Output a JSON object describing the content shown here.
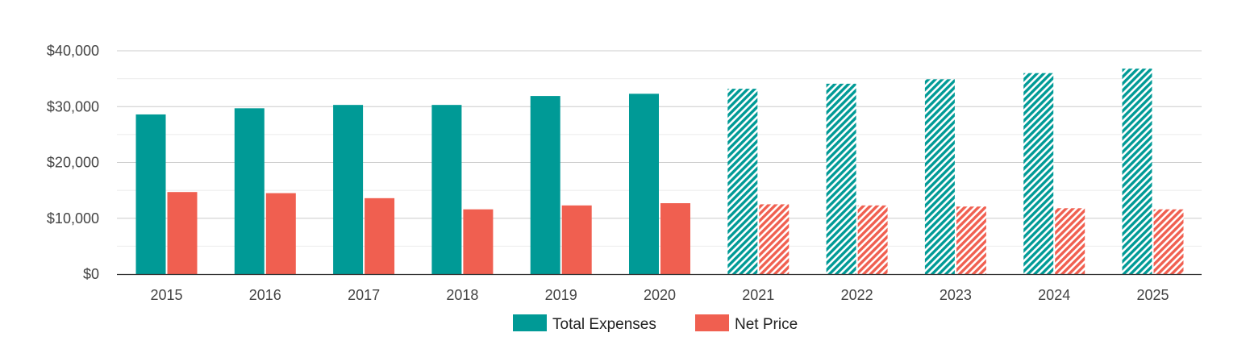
{
  "chart_data": {
    "type": "bar",
    "title": "",
    "xlabel": "",
    "ylabel": "",
    "categories": [
      "2015",
      "2016",
      "2017",
      "2018",
      "2019",
      "2020",
      "2021",
      "2022",
      "2023",
      "2024",
      "2025"
    ],
    "series": [
      {
        "name": "Total Expenses",
        "color": "#009a96",
        "values": [
          28600,
          29700,
          30300,
          30300,
          31900,
          32300,
          33200,
          34100,
          34900,
          36000,
          36800
        ]
      },
      {
        "name": "Net Price",
        "color": "#f05f50",
        "values": [
          14700,
          14500,
          13600,
          11600,
          12300,
          12700,
          12500,
          12300,
          12100,
          11800,
          11600
        ]
      }
    ],
    "hatched_categories": [
      "2021",
      "2022",
      "2023",
      "2024",
      "2025"
    ],
    "ylim": [
      0,
      40000
    ],
    "yticks": [
      0,
      10000,
      20000,
      30000,
      40000
    ],
    "ytick_labels": [
      "$0",
      "$10,000",
      "$20,000",
      "$30,000",
      "$40,000"
    ],
    "minor_gridlines": true,
    "legend": {
      "placement": "bottom-center",
      "entries": [
        "Total Expenses",
        "Net Price"
      ]
    }
  }
}
